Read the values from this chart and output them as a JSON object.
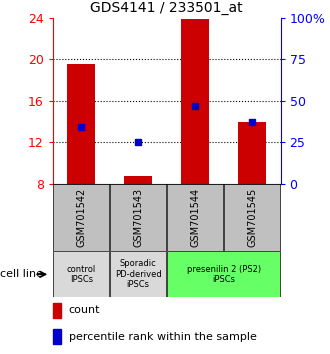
{
  "title": "GDS4141 / 233501_at",
  "samples": [
    "GSM701542",
    "GSM701543",
    "GSM701544",
    "GSM701545"
  ],
  "count_values": [
    19.5,
    8.8,
    23.9,
    14.0
  ],
  "count_base": 8.0,
  "percentile_values": [
    13.5,
    12.0,
    15.5,
    14.0
  ],
  "ylim": [
    8,
    24
  ],
  "yticks": [
    8,
    12,
    16,
    20,
    24
  ],
  "y2ticks": [
    0,
    25,
    50,
    75,
    100
  ],
  "y2labels": [
    "0",
    "25",
    "50",
    "75",
    "100%"
  ],
  "bar_color": "#cc0000",
  "dot_color": "#0000cc",
  "group_data": [
    {
      "span": [
        0,
        0
      ],
      "label": "control\nIPSCs",
      "color": "#d9d9d9"
    },
    {
      "span": [
        1,
        1
      ],
      "label": "Sporadic\nPD-derived\niPSCs",
      "color": "#d9d9d9"
    },
    {
      "span": [
        2,
        3
      ],
      "label": "presenilin 2 (PS2)\niPSCs",
      "color": "#66ff66"
    }
  ],
  "sample_bg_color": "#c0c0c0",
  "legend_count_label": "count",
  "legend_pct_label": "percentile rank within the sample",
  "cell_line_label": "cell line",
  "bar_width": 0.5
}
